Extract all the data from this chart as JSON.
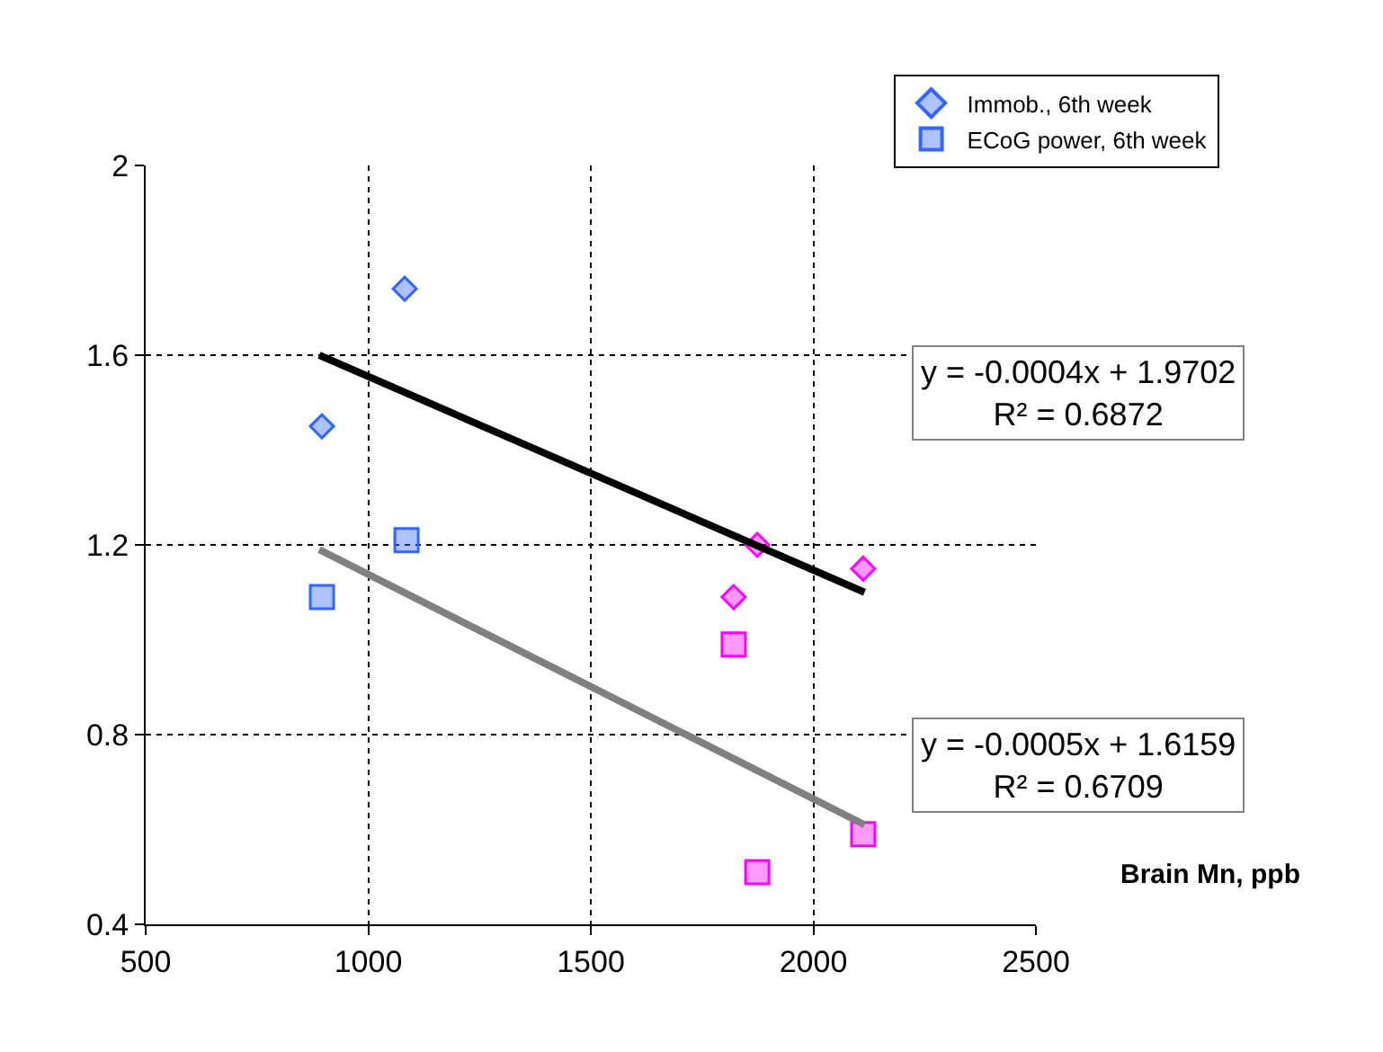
{
  "chart_data": {
    "type": "scatter",
    "xlabel": "Brain Mn, ppb",
    "xlim": [
      500,
      2500
    ],
    "xticks": [
      500,
      1000,
      1500,
      2000,
      2500
    ],
    "ylim": [
      0.4,
      2
    ],
    "yticks": [
      {
        "value": 0.4,
        "label": "0.4"
      },
      {
        "value": 0.8,
        "label": "0.8"
      },
      {
        "value": 1.2,
        "label": "1.2"
      },
      {
        "value": 1.6,
        "label": "1.6"
      },
      {
        "value": 2,
        "label": "2"
      }
    ],
    "grid": true,
    "legend": "top right",
    "series": [
      {
        "name": "Immob., 6th week",
        "marker": "diamond",
        "x": [
          1082,
          896,
          1874,
          2112,
          1821
        ],
        "values": [
          1.74,
          1.45,
          1.2,
          1.15,
          1.09
        ],
        "colors": [
          "#3366ff",
          "#3366ff",
          "#ff00ff",
          "#ff00ff",
          "#ff00ff"
        ]
      },
      {
        "name": "ECoG power, 6th week",
        "marker": "square",
        "x": [
          1086,
          896,
          1821,
          2112,
          1874
        ],
        "values": [
          1.21,
          1.09,
          0.99,
          0.59,
          0.51
        ],
        "colors": [
          "#3366ff",
          "#3366ff",
          "#ff00ff",
          "#ff00ff",
          "#ff00ff"
        ]
      },
      {
        "type": "line",
        "color": "#000000",
        "x": [
          890,
          2115
        ],
        "values": [
          1.6,
          1.1
        ]
      },
      {
        "type": "line",
        "color": "#808080",
        "x": [
          890,
          2115
        ],
        "values": [
          1.19,
          0.61
        ]
      }
    ],
    "annotations": [
      "y = -0.0004x + 1.9702\nR² = 0.6872",
      "y = -0.0005x + 1.6159\nR² = 0.6709"
    ]
  }
}
